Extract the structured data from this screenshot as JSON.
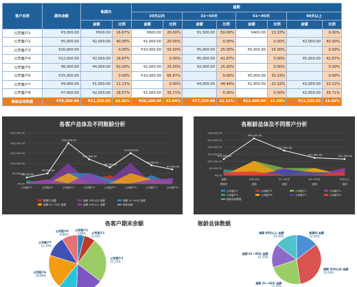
{
  "table": {
    "header": {
      "customer": "客户名称",
      "ending_balance": "期末余额",
      "not_due": "账期内",
      "overdue": "逾期",
      "d30": "30天以内",
      "d31_60": "31～60天",
      "d61_90": "61～90天",
      "d90p": "90天以上",
      "amount": "金额",
      "ratio": "比例"
    },
    "rows": [
      {
        "name": "公司客户1",
        "balance": "¥3,000.00",
        "nd_amt": "¥500.00",
        "nd_pct": "16.67%",
        "a30": "¥600.00",
        "p30": "20.00%",
        "a60": "¥1,500.00",
        "p60": "50.00%",
        "a90": "¥400.00",
        "p90": "13.33%",
        "a90p": "",
        "p90p": "0.00%"
      },
      {
        "name": "公司客户2",
        "balance": "¥5,000.00",
        "nd_amt": "¥2,000.00",
        "nd_pct": "40.00%",
        "a30": "¥1,000.00",
        "p30": "20.00%",
        "a60": "",
        "p60": "0.00%",
        "a90": "",
        "p90": "0.00%",
        "a90p": "¥2,000.00",
        "p90p": "40.00%"
      },
      {
        "name": "公司客户3",
        "balance": "¥20,000.00",
        "nd_amt": "",
        "nd_pct": "0.00%",
        "a30": "¥10,000.00",
        "p30": "50.00%",
        "a60": "¥5,000.00",
        "p60": "25.00%",
        "a90": "¥5,000.00",
        "p90": "25.00%",
        "a90p": "",
        "p90p": "0.00%"
      },
      {
        "name": "公司客户4",
        "balance": "¥12,000.00",
        "nd_amt": "¥2,000.00",
        "nd_pct": "16.67%",
        "a30": "",
        "p30": "0.00%",
        "a60": "¥5,000.00",
        "p60": "41.67%",
        "a90": "",
        "p90": "0.00%",
        "a90p": "¥5,000.00",
        "p90p": "41.67%"
      },
      {
        "name": "公司客户5",
        "balance": "¥8,000.00",
        "nd_amt": "¥4,000.00",
        "nd_pct": "50.00%",
        "a30": "¥2,000.00",
        "p30": "25.00%",
        "a60": "¥2,000.00",
        "p60": "25.00%",
        "a90": "",
        "p90": "0.00%",
        "a90p": "",
        "p90p": "0.00%"
      },
      {
        "name": "公司客户6",
        "balance": "¥15,000.00",
        "nd_amt": "",
        "nd_pct": "0.00%",
        "a30": "¥10,000.00",
        "p30": "66.67%",
        "a60": "",
        "p60": "0.00%",
        "a90": "¥5,000.00",
        "p90": "33.33%",
        "a90p": "",
        "p90p": "0.00%"
      },
      {
        "name": "公司客户7",
        "balance": "¥9,000.00",
        "nd_amt": "¥1,000.00",
        "nd_pct": "11.11%",
        "a30": "",
        "p30": "0.00%",
        "a60": "¥4,000.00",
        "p60": "44.44%",
        "a90": "¥2,000.00",
        "p90": "22.22%",
        "a90p": "¥2,000.00",
        "p90p": "22.22%"
      },
      {
        "name": "公司客户8",
        "balance": "¥7,000.00",
        "nd_amt": "¥2,000.00",
        "nd_pct": "28.57%",
        "a30": "¥2,500.00",
        "p30": "35.71%",
        "a60": "",
        "p60": "0.00%",
        "a90": "",
        "p90": "0.00%",
        "a90p": "¥2,500.00",
        "p90p": "35.71%"
      }
    ],
    "total": {
      "name": "账龄总体数据",
      "balance": "¥79,000.00",
      "nd_amt": "¥11,500.00",
      "nd_pct": "14.56%",
      "a30": "¥26,100.00",
      "p30": "33.04%",
      "a60": "¥17,500.00",
      "p60": "22.15%",
      "a90": "¥12,400.00",
      "p90": "15.70%",
      "a90p": "¥11,500.00",
      "p90p": "14.56%"
    }
  },
  "colors": {
    "header_blue": "#1f5f9a",
    "total_orange": "#f07d1a",
    "s_nd": "#c0392b",
    "s_30": "#7b3fa0",
    "s_60": "#2e86c1",
    "s_90": "#f39c12",
    "s_90p": "#8e44ad",
    "s_bal": "#ffffff"
  },
  "chart_data": [
    {
      "type": "area",
      "title": "各客户总体及不同账龄分析",
      "categories": [
        "公司客户1",
        "公司客户2",
        "公司客户3",
        "公司客户4",
        "公司客户5",
        "公司客户6",
        "公司客户7",
        "公司客户8"
      ],
      "ylim": [
        0,
        25000
      ],
      "yticks": [
        "¥0.00",
        "¥5,000.00",
        "¥10,000.00",
        "¥15,000.00",
        "¥20,000.00",
        "¥25,000.00"
      ],
      "series": [
        {
          "name": "账期内 金额",
          "values": [
            500,
            2000,
            0,
            2000,
            4000,
            0,
            1000,
            2000
          ]
        },
        {
          "name": "逾期 30天以内 金额",
          "values": [
            600,
            1000,
            10000,
            0,
            2000,
            10000,
            0,
            2500
          ]
        },
        {
          "name": "逾期 31～60天 金额",
          "values": [
            1500,
            0,
            5000,
            5000,
            2000,
            0,
            4000,
            0
          ]
        },
        {
          "name": "逾期 61～90天 金额",
          "values": [
            400,
            0,
            5000,
            0,
            0,
            5000,
            2000,
            0
          ]
        },
        {
          "name": "逾期 90天以上 金额",
          "values": [
            0,
            2000,
            0,
            5000,
            0,
            0,
            2000,
            2500
          ]
        },
        {
          "name": "期末余额",
          "values": [
            3000,
            5000,
            20000,
            12000,
            8000,
            15000,
            9000,
            7000
          ]
        }
      ],
      "data_labels": [
        "¥3,000.00",
        "¥5,000.00",
        "¥20,000.00",
        "¥12,000.00",
        "¥8,000.00",
        "¥15,000.00",
        "¥9,000.00",
        "¥7,000.00"
      ],
      "legend": [
        "账期内 金额",
        "逾期 30天以内 金额",
        "逾期 31～60天 金额",
        "逾期 61～90天 金额",
        "逾期 90天以上 金额",
        "期末余额"
      ]
    },
    {
      "type": "area",
      "title": "各账龄总体及不同客户分析",
      "categories": [
        "金额",
        "30天以内",
        "31～60天",
        "61～90天",
        "90天以上"
      ],
      "ylim": [
        0,
        30000
      ],
      "yticks": [
        "¥0.00",
        "¥5,000.00",
        "¥10,000.00",
        "¥15,000.00",
        "¥20,000.00",
        "¥25,000.00",
        "¥30,000.00"
      ],
      "series": [
        {
          "name": "公司客户1",
          "values": [
            500,
            600,
            1500,
            400,
            0
          ]
        },
        {
          "name": "公司客户2",
          "values": [
            2000,
            1000,
            0,
            0,
            2000
          ]
        },
        {
          "name": "公司客户3",
          "values": [
            0,
            10000,
            5000,
            5000,
            0
          ]
        },
        {
          "name": "公司客户4",
          "values": [
            2000,
            0,
            5000,
            0,
            5000
          ]
        },
        {
          "name": "公司客户5",
          "values": [
            4000,
            2000,
            2000,
            0,
            0
          ]
        },
        {
          "name": "公司客户6",
          "values": [
            0,
            10000,
            0,
            5000,
            0
          ]
        },
        {
          "name": "公司客户7",
          "values": [
            1000,
            0,
            4000,
            2000,
            2000
          ]
        },
        {
          "name": "公司客户8",
          "values": [
            2000,
            2500,
            0,
            0,
            2500
          ]
        },
        {
          "name": "账龄总体数据",
          "values": [
            11500,
            26100,
            17500,
            12400,
            11500
          ]
        }
      ],
      "data_labels": [
        "¥11,500.00",
        "¥26,100.00",
        "¥17,500.00",
        "¥12,400.00",
        "¥11,500.00"
      ],
      "xgroup_labels": [
        "账期内",
        "逾期",
        "逾期",
        "逾期",
        "逾期"
      ],
      "legend": [
        "公司客户1",
        "公司客户2",
        "公司客户3",
        "公司客户4",
        "公司客户5",
        "公司客户6",
        "公司客户7",
        "公司客户8",
        "账龄总体数据"
      ]
    },
    {
      "type": "pie",
      "title": "各客户期末余额",
      "labels": [
        "公司客户1",
        "公司客户2",
        "公司客户3",
        "公司客户4",
        "公司客户5",
        "公司客户6",
        "公司客户7",
        "公司客户8"
      ],
      "values": [
        3000,
        5000,
        20000,
        12000,
        8000,
        15000,
        9000,
        7000
      ],
      "pct_labels": [
        "3.80%",
        "6.33%",
        "25.32%",
        "15.19%",
        "10.13%",
        "18.99%",
        "11.39%",
        "8.86%"
      ]
    },
    {
      "type": "pie",
      "title": "账龄总体数据",
      "labels": [
        "账期内 金额",
        "逾期 30天以内 金额",
        "逾期 31～60天 金额",
        "逾期 61～90天 金额",
        "逾期 90天以上 金额"
      ],
      "values": [
        11500,
        26100,
        17500,
        12400,
        11500
      ],
      "pct_labels": [
        "14.56%",
        "33.04%",
        "22.15%",
        "15.70%",
        "14.56%"
      ]
    }
  ]
}
